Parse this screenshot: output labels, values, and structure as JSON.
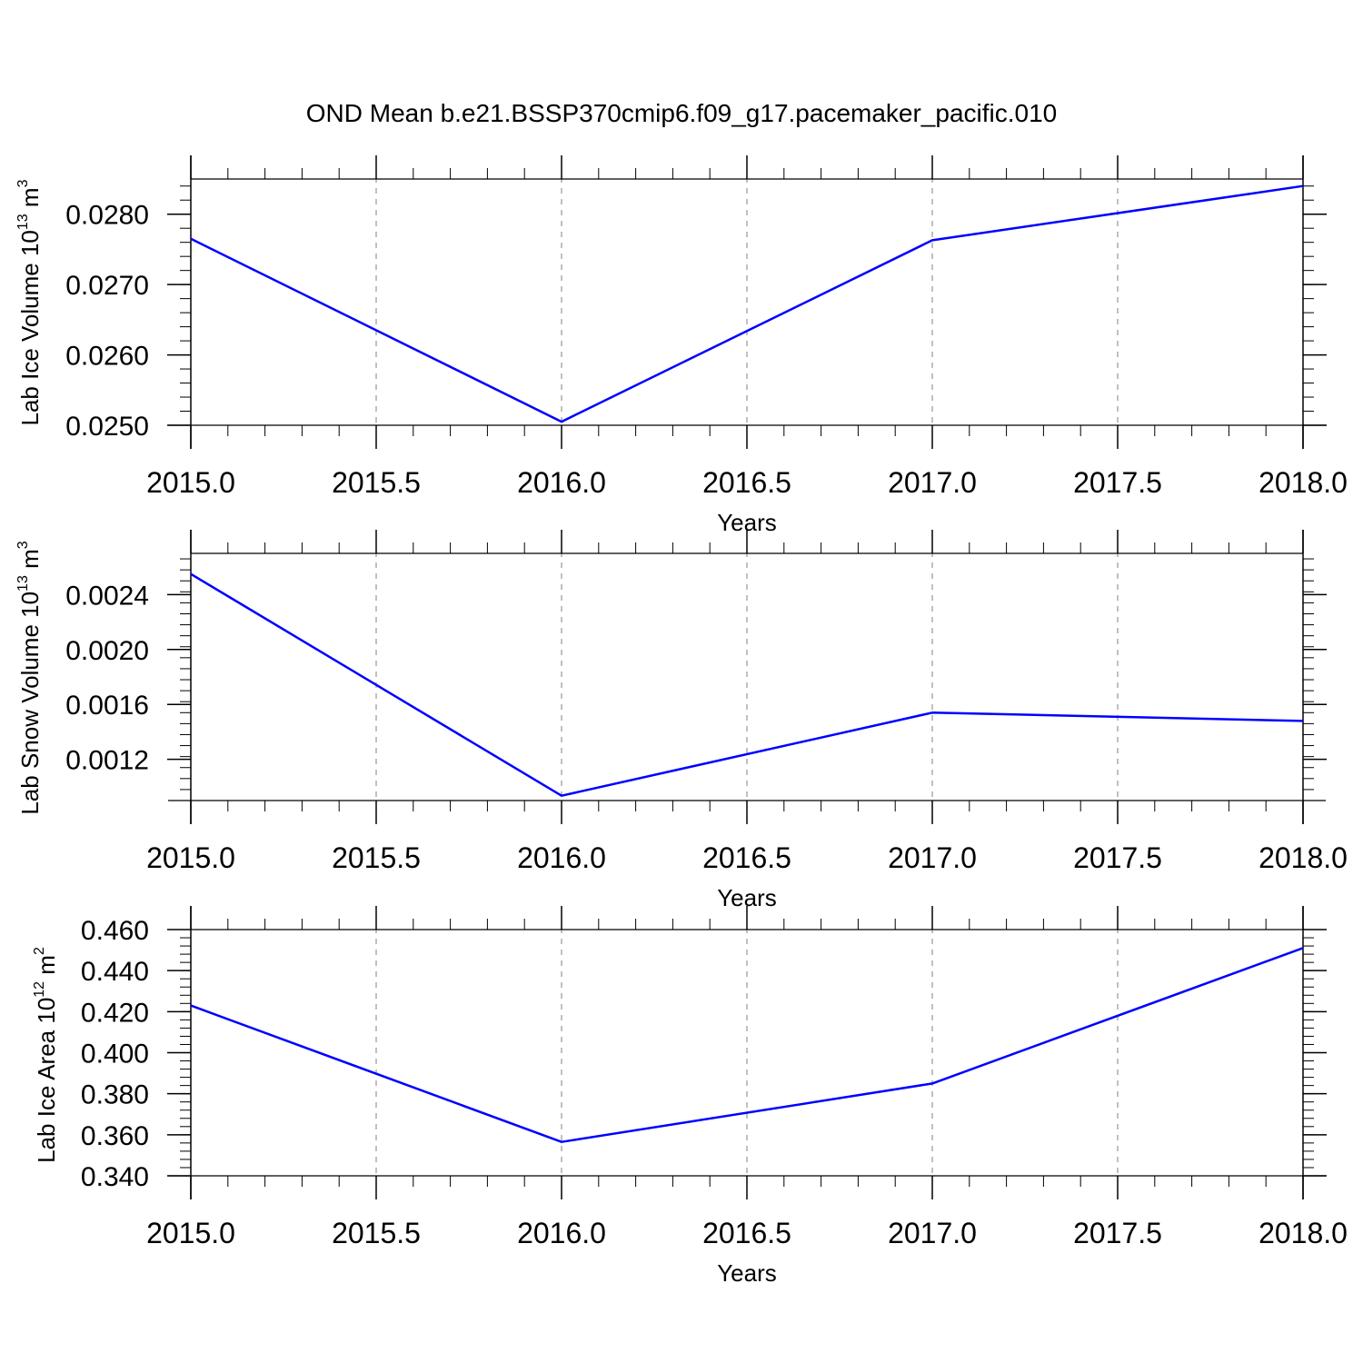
{
  "title": "OND Mean b.e21.BSSP370cmip6.f09_g17.pacemaker_pacific.010",
  "colors": {
    "line": "#0000ff",
    "axis": "#000000",
    "grid": "#808080"
  },
  "chart_data": [
    {
      "type": "line",
      "title": "",
      "xlabel": "Years",
      "ylabel": {
        "prefix": "Lab Ice Volume 10",
        "exp": "13",
        "unit": " m",
        "unit_exp": "3"
      },
      "x": [
        2015,
        2016,
        2017,
        2018
      ],
      "series": [
        {
          "values": [
            0.02765,
            0.02505,
            0.02763,
            0.0284
          ]
        }
      ],
      "xlim": [
        2015,
        2018
      ],
      "ylim": [
        0.025,
        0.0285
      ],
      "xticks": [
        "2015.0",
        "2015.5",
        "2016.0",
        "2016.5",
        "2017.0",
        "2017.5",
        "2018.0"
      ],
      "yticks": [
        "0.0250",
        "0.0260",
        "0.0270",
        "0.0280"
      ],
      "grid": "vertical-dashed"
    },
    {
      "type": "line",
      "title": "",
      "xlabel": "Years",
      "ylabel": {
        "prefix": "Lab Snow Volume 10",
        "exp": "13",
        "unit": " m",
        "unit_exp": "3"
      },
      "x": [
        2015,
        2016,
        2017,
        2018
      ],
      "series": [
        {
          "values": [
            0.00255,
            0.000935,
            0.00154,
            0.00148
          ]
        }
      ],
      "xlim": [
        2015,
        2018
      ],
      "ylim": [
        0.0009,
        0.0027
      ],
      "xticks": [
        "2015.0",
        "2015.5",
        "2016.0",
        "2016.5",
        "2017.0",
        "2017.5",
        "2018.0"
      ],
      "yticks": [
        "0.0012",
        "0.0016",
        "0.0020",
        "0.0024"
      ],
      "grid": "vertical-dashed"
    },
    {
      "type": "line",
      "title": "",
      "xlabel": "Years",
      "ylabel": {
        "prefix": "Lab Ice Area 10",
        "exp": "12",
        "unit": " m",
        "unit_exp": "2"
      },
      "x": [
        2015,
        2016,
        2017,
        2018
      ],
      "series": [
        {
          "values": [
            0.423,
            0.3565,
            0.385,
            0.451
          ]
        }
      ],
      "xlim": [
        2015,
        2018
      ],
      "ylim": [
        0.34,
        0.46
      ],
      "xticks": [
        "2015.0",
        "2015.5",
        "2016.0",
        "2016.5",
        "2017.0",
        "2017.5",
        "2018.0"
      ],
      "yticks": [
        "0.340",
        "0.360",
        "0.380",
        "0.400",
        "0.420",
        "0.440",
        "0.460"
      ],
      "grid": "vertical-dashed"
    }
  ]
}
